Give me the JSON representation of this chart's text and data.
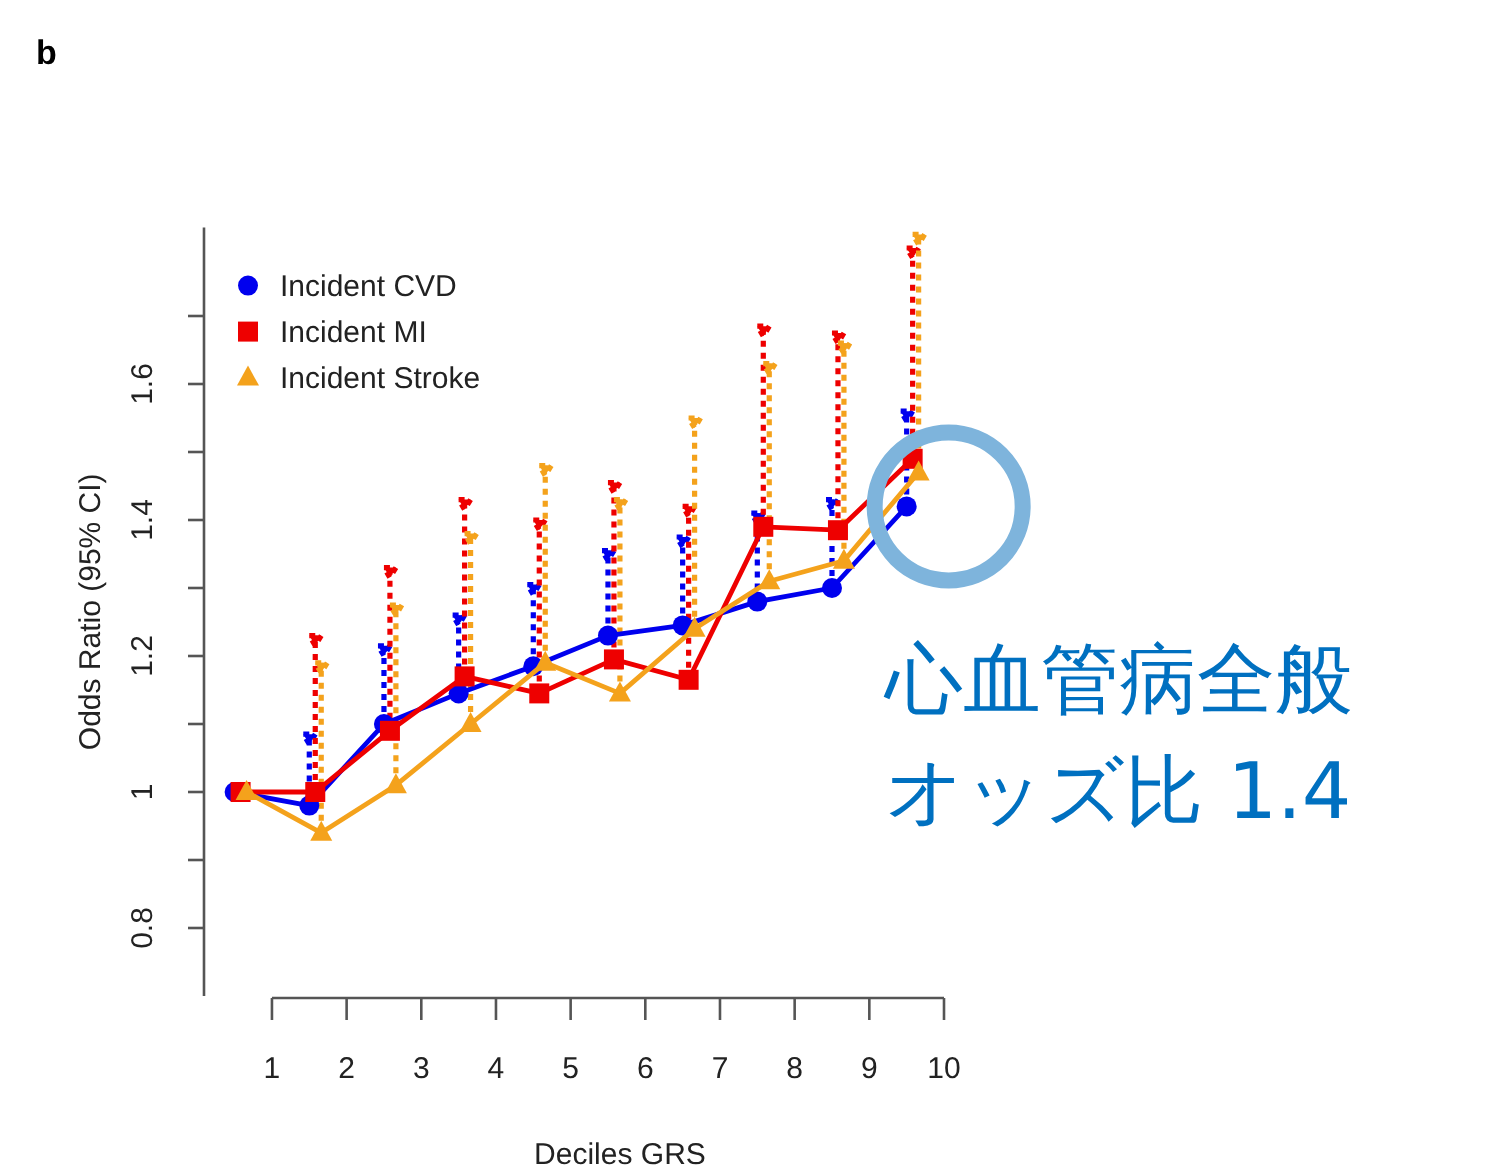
{
  "chart_data": {
    "type": "line",
    "title": "b",
    "xlabel": "Deciles GRS",
    "ylabel": "Odds Ratio (95% CI)",
    "xlim": [
      0.09,
      10
    ],
    "ylim": [
      0.7,
      1.83
    ],
    "xticks": [
      1,
      2,
      3,
      4,
      5,
      6,
      7,
      8,
      9,
      10
    ],
    "yticks": [
      {
        "value": 0.8,
        "label": "0.8"
      },
      {
        "value": 0.9,
        "label": null
      },
      {
        "value": 1,
        "label": "1"
      },
      {
        "value": 1.1,
        "label": null
      },
      {
        "value": 1.2,
        "label": "1.2"
      },
      {
        "value": 1.3,
        "label": null
      },
      {
        "value": 1.4,
        "label": "1.4"
      },
      {
        "value": 1.5,
        "label": null
      },
      {
        "value": 1.6,
        "label": "1.6"
      },
      {
        "value": 1.7,
        "label": null
      }
    ],
    "legend": "top left",
    "grid": false,
    "line_style": "solid",
    "series": [
      {
        "name": "Incident CVD",
        "color": "#0000ee",
        "marker": "circle",
        "x": [
          0.5,
          1.5,
          2.5,
          3.5,
          4.5,
          5.5,
          6.5,
          7.5,
          8.5,
          9.5
        ],
        "values": [
          1.0,
          0.98,
          1.1,
          1.145,
          1.185,
          1.23,
          1.245,
          1.28,
          1.3,
          1.42
        ],
        "errors": [
          null,
          [
            0.98,
            1.085
          ],
          [
            1.1,
            1.215
          ],
          [
            1.145,
            1.26
          ],
          [
            1.185,
            1.305
          ],
          [
            1.23,
            1.355
          ],
          [
            1.245,
            1.375
          ],
          [
            1.28,
            1.41
          ],
          [
            1.3,
            1.43
          ],
          [
            1.42,
            1.56
          ]
        ]
      },
      {
        "name": "Incident MI",
        "color": "#ee0000",
        "marker": "square",
        "x": [
          0.58,
          1.58,
          2.58,
          3.58,
          4.58,
          5.58,
          6.58,
          7.58,
          8.58,
          9.58
        ],
        "values": [
          1.0,
          1.0,
          1.09,
          1.17,
          1.145,
          1.195,
          1.165,
          1.39,
          1.385,
          1.49
        ],
        "errors": [
          null,
          [
            1.0,
            1.23
          ],
          [
            1.09,
            1.33
          ],
          [
            1.17,
            1.43
          ],
          [
            1.145,
            1.4
          ],
          [
            1.195,
            1.455
          ],
          [
            1.165,
            1.42
          ],
          [
            1.39,
            1.685
          ],
          [
            1.385,
            1.675
          ],
          [
            1.49,
            1.8
          ]
        ]
      },
      {
        "name": "Incident Stroke",
        "color": "#f4a21c",
        "marker": "triangle",
        "x": [
          0.66,
          1.66,
          2.66,
          3.66,
          4.66,
          5.66,
          6.66,
          7.66,
          8.66,
          9.66
        ],
        "values": [
          1.0,
          0.94,
          1.01,
          1.1,
          1.19,
          1.145,
          1.24,
          1.31,
          1.34,
          1.47
        ],
        "errors": [
          null,
          [
            0.94,
            1.19
          ],
          [
            1.01,
            1.275
          ],
          [
            1.1,
            1.38
          ],
          [
            1.19,
            1.48
          ],
          [
            1.145,
            1.43
          ],
          [
            1.24,
            1.55
          ],
          [
            1.31,
            1.63
          ],
          [
            1.34,
            1.66
          ],
          [
            1.47,
            1.82
          ]
        ]
      }
    ],
    "annotations": [
      "心血管病全般",
      "オッズ比 1.4"
    ]
  }
}
